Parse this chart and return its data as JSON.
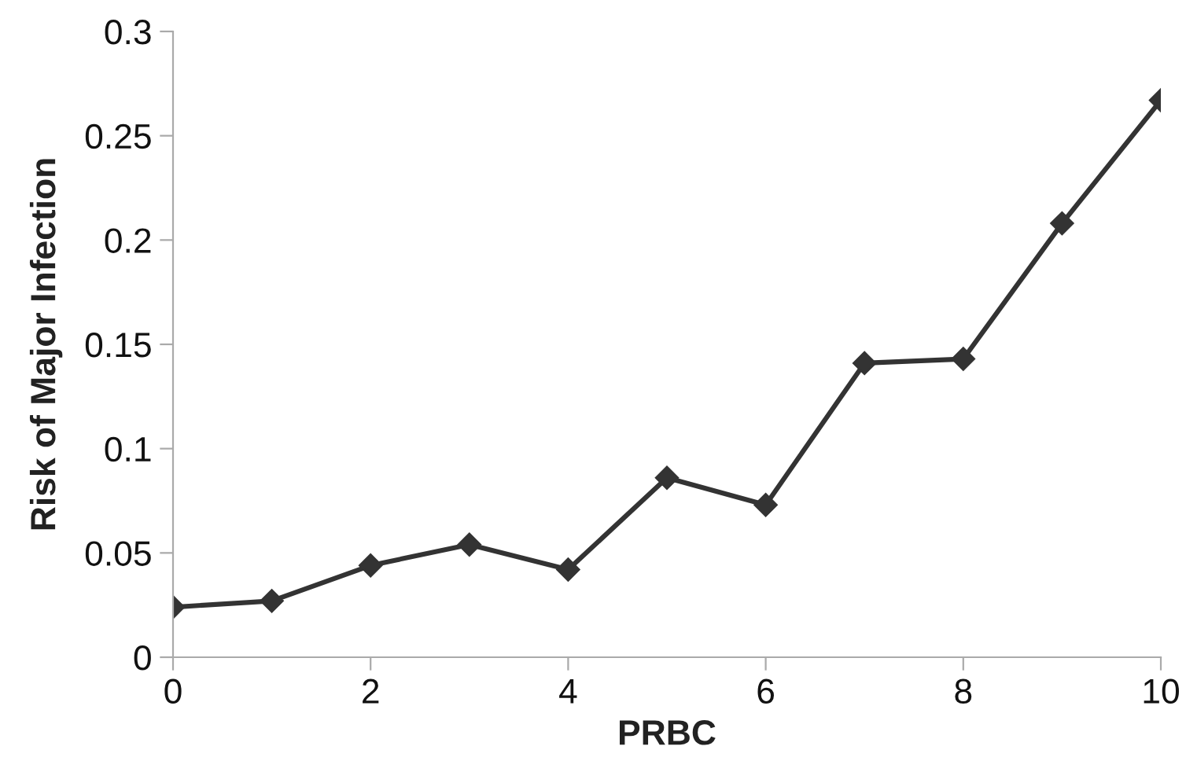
{
  "chart_data": {
    "type": "line",
    "xlabel": "PRBC",
    "ylabel": "Risk of Major Infection",
    "x": [
      0,
      1,
      2,
      3,
      4,
      5,
      6,
      7,
      8,
      9,
      10
    ],
    "series": [
      {
        "color": "#333333",
        "values": [
          0.024,
          0.027,
          0.044,
          0.054,
          0.042,
          0.086,
          0.073,
          0.141,
          0.143,
          0.208,
          0.267
        ]
      }
    ],
    "xlim": [
      0,
      10
    ],
    "xticks": [
      0,
      2,
      4,
      6,
      8,
      10
    ],
    "ylim": [
      0,
      0.3
    ],
    "yticks": [
      0,
      0.05,
      0.1,
      0.15,
      0.2,
      0.25,
      0.3
    ],
    "grid": false,
    "legend": false,
    "marker": "diamond",
    "line_style": "solid"
  }
}
